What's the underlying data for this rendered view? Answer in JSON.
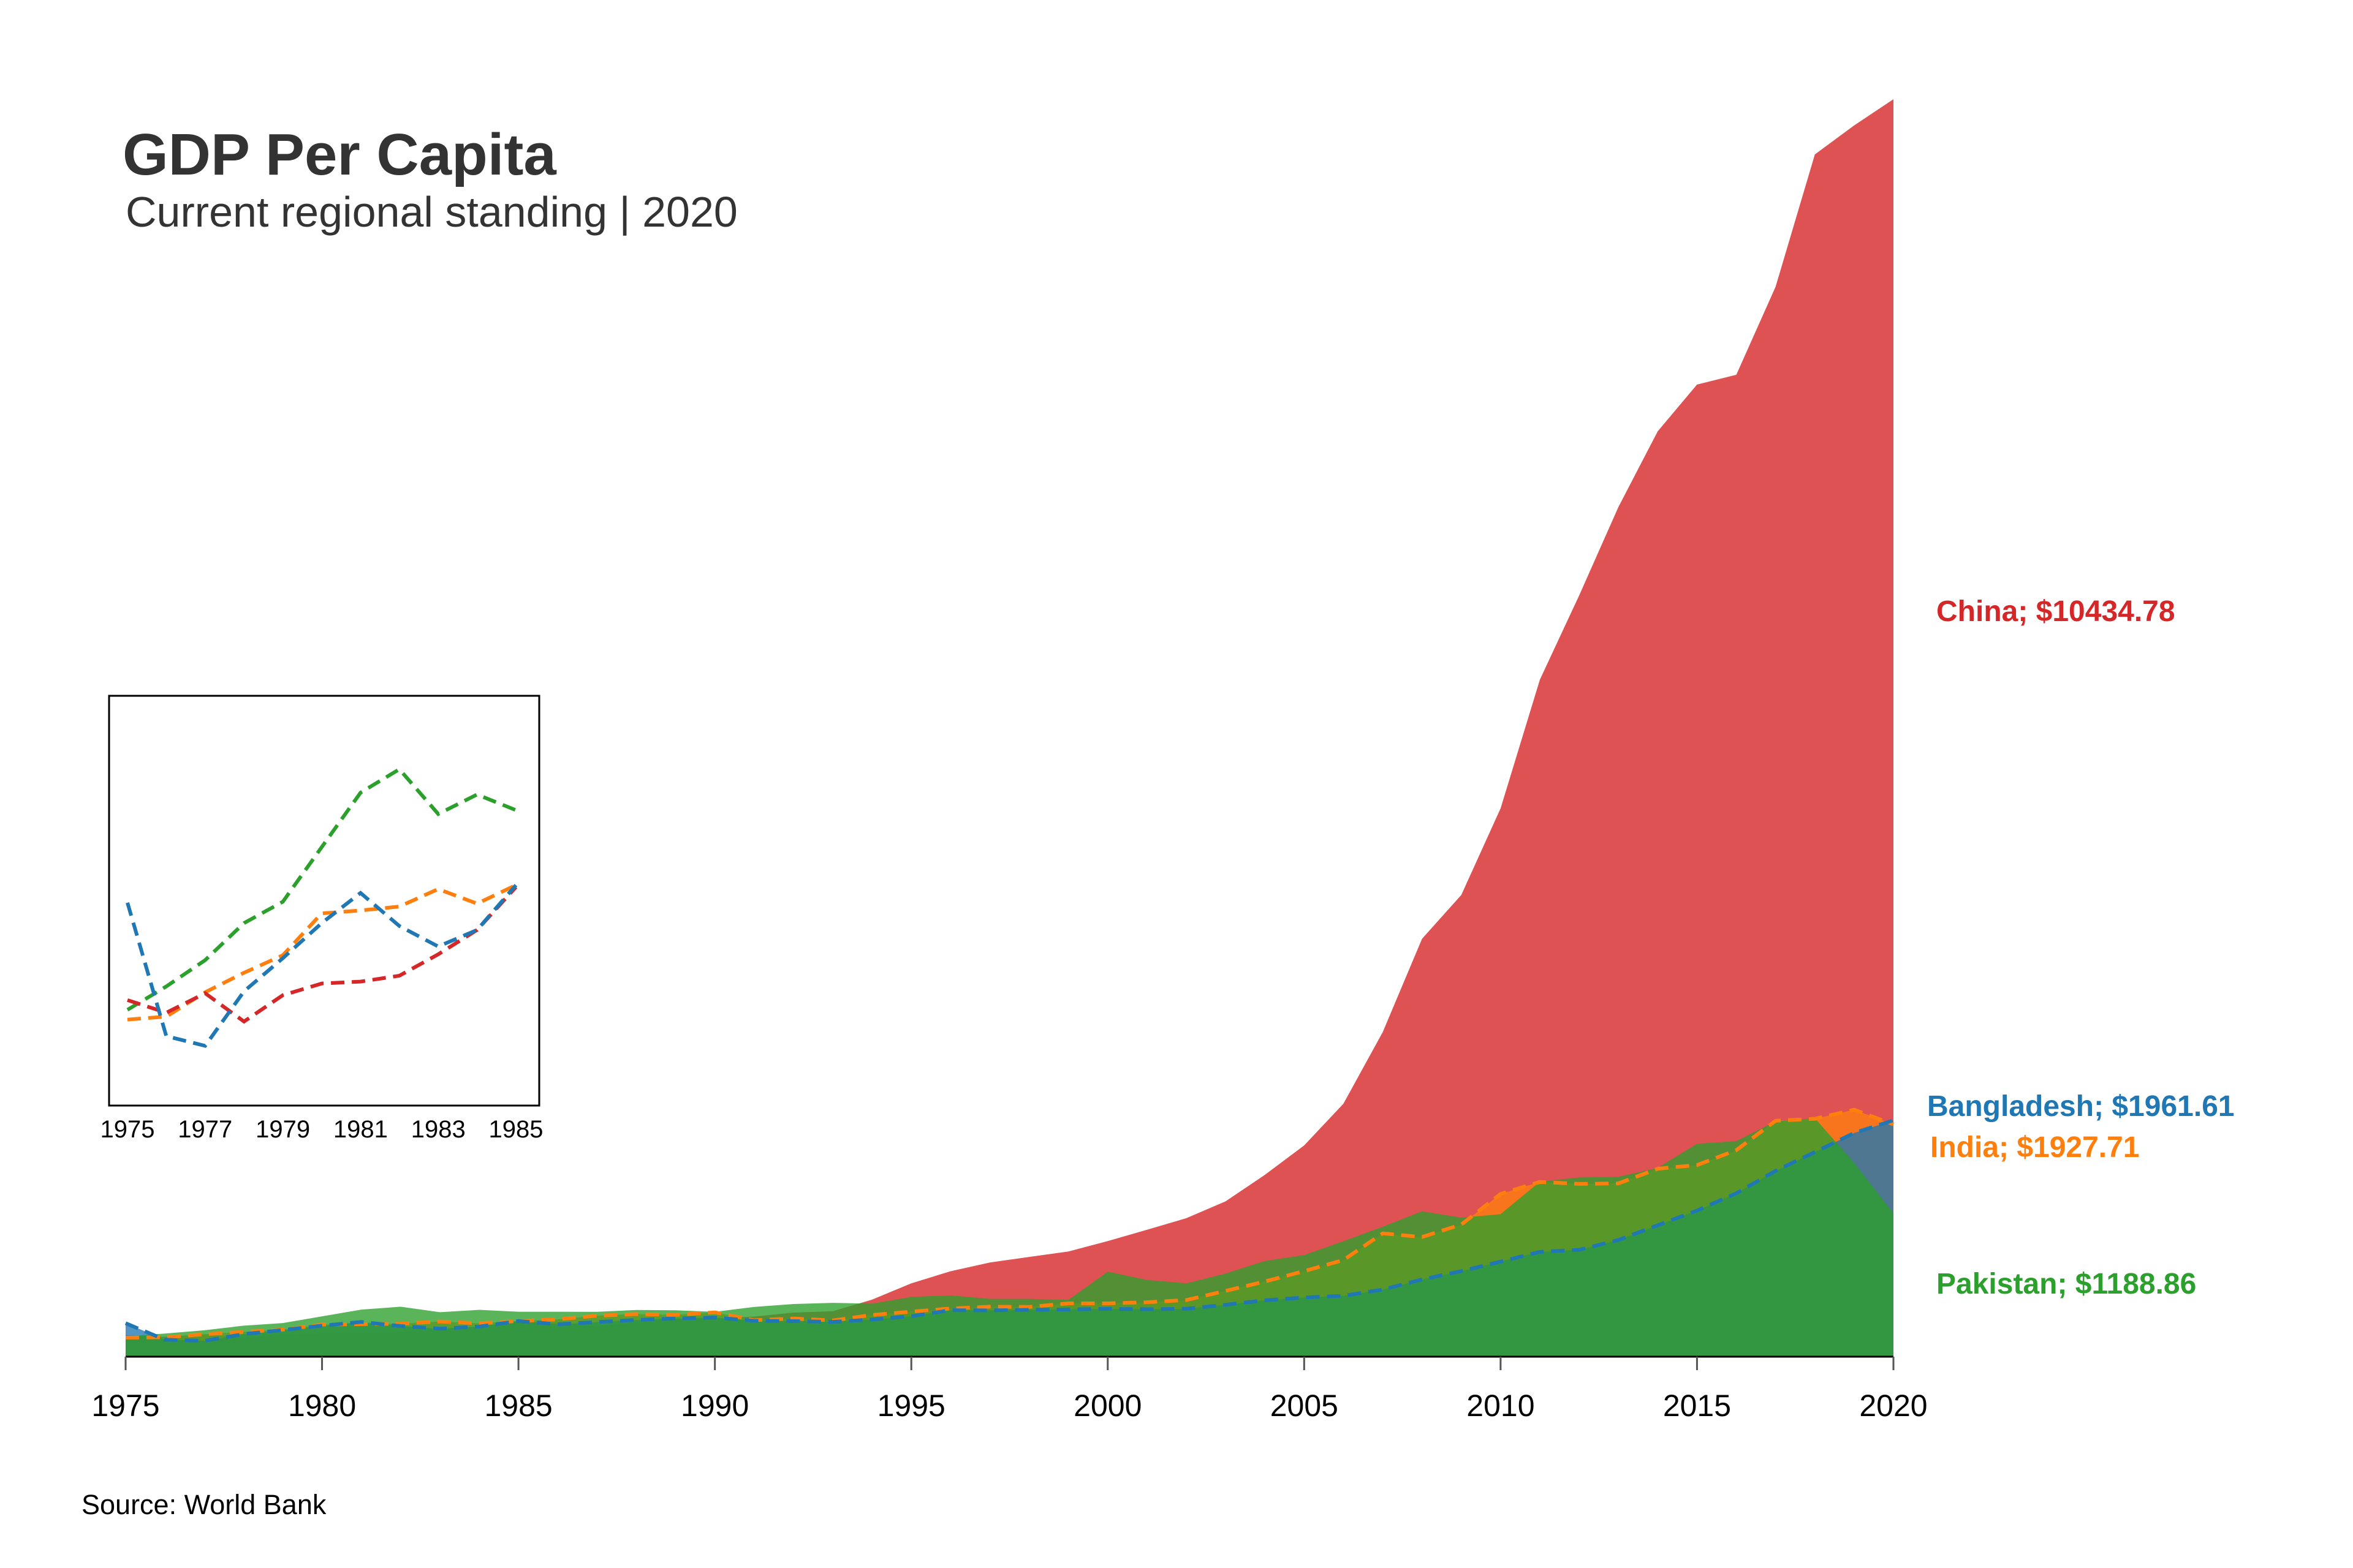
{
  "header": {
    "title": "GDP Per Capita",
    "subtitle": "Current regional standing | 2020"
  },
  "source": "Source: World Bank",
  "chart_data": {
    "type": "area",
    "x": [
      1975,
      1976,
      1977,
      1978,
      1979,
      1980,
      1981,
      1982,
      1983,
      1984,
      1985,
      1986,
      1987,
      1988,
      1989,
      1990,
      1991,
      1992,
      1993,
      1994,
      1995,
      1996,
      1997,
      1998,
      1999,
      2000,
      2001,
      2002,
      2003,
      2004,
      2005,
      2006,
      2007,
      2008,
      2009,
      2010,
      2011,
      2012,
      2013,
      2014,
      2015,
      2016,
      2017,
      2018,
      2019,
      2020
    ],
    "xlim": [
      1975,
      2020
    ],
    "ylim": [
      0,
      10434.78
    ],
    "xticks": [
      "1975",
      "1980",
      "1985",
      "1990",
      "1995",
      "2000",
      "2005",
      "2010",
      "2015",
      "2020"
    ],
    "grid": false,
    "series": [
      {
        "name": "China",
        "color": "#d62728",
        "values": [
          178,
          165,
          185,
          156,
          183,
          195,
          197,
          203,
          225,
          250,
          294,
          281,
          252,
          284,
          311,
          318,
          333,
          366,
          377,
          473,
          609,
          709,
          781,
          828,
          873,
          959,
          1053,
          1149,
          1289,
          1509,
          1753,
          2099,
          2694,
          3468,
          3832,
          4550,
          5618,
          6317,
          7051,
          7679,
          8067,
          8148,
          8879,
          9977,
          10217,
          10434.78
        ],
        "end_label": "China; $10434.78"
      },
      {
        "name": "Bangladesh",
        "color": "#1f77b4",
        "values": [
          278,
          141,
          131,
          187,
          221,
          257,
          288,
          254,
          233,
          250,
          296,
          269,
          287,
          305,
          317,
          325,
          298,
          295,
          289,
          308,
          336,
          386,
          384,
          389,
          392,
          397,
          394,
          398,
          431,
          468,
          491,
          505,
          557,
          641,
          710,
          789,
          870,
          887,
          969,
          1091,
          1212,
          1356,
          1542,
          1698,
          1856,
          1961.61
        ],
        "end_label": "Bangladesh; $1961.61"
      },
      {
        "name": "India",
        "color": "#ff7f0e",
        "values": [
          158,
          161,
          186,
          206,
          224,
          267,
          270,
          274,
          292,
          277,
          296,
          310,
          340,
          354,
          347,
          368,
          303,
          317,
          301,
          346,
          374,
          400,
          415,
          413,
          442,
          442,
          452,
          470,
          546,
          624,
          710,
          802,
          1023,
          993,
          1097,
          1351,
          1450,
          1434,
          1438,
          1560,
          1590,
          1714,
          1958,
          1974,
          2050,
          1927.71
        ],
        "end_label": "India; $1927.71"
      },
      {
        "name": "Pakistan",
        "color": "#2ca02c",
        "values": [
          168,
          192,
          219,
          257,
          279,
          335,
          391,
          415,
          369,
          389,
          373,
          373,
          372,
          388,
          385,
          372,
          413,
          437,
          447,
          440,
          496,
          509,
          480,
          480,
          471,
          705,
          637,
          609,
          690,
          794,
          843,
          958,
          1079,
          1206,
          1154,
          1183,
          1452,
          1487,
          1493,
          1567,
          1767,
          1789,
          1954,
          1978,
          1609,
          1188.86
        ],
        "end_label": "Pakistan; $1188.86"
      }
    ],
    "inset": {
      "type": "line",
      "x_range": [
        1975,
        1985
      ],
      "xticks": [
        "1975",
        "1977",
        "1979",
        "1981",
        "1983",
        "1985"
      ],
      "line_style": "dashed"
    },
    "source": "Source: World Bank"
  }
}
